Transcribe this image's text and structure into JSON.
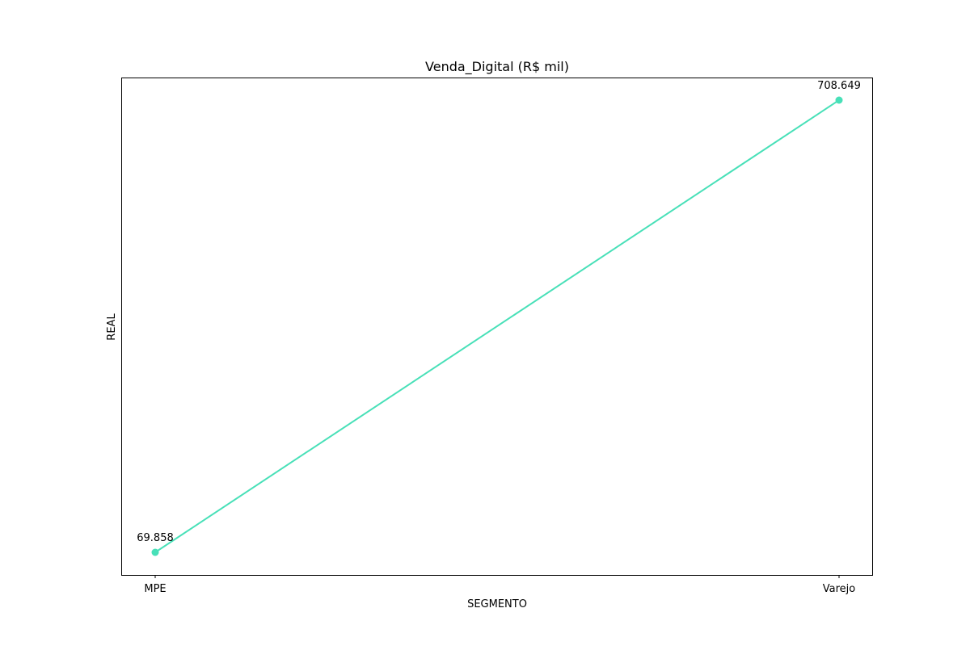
{
  "chart_data": {
    "type": "line",
    "title": "Venda_Digital (R$ mil)",
    "xlabel": "SEGMENTO",
    "ylabel": "REAL",
    "categories": [
      "MPE",
      "Varejo"
    ],
    "series": [
      {
        "values": [
          69.858,
          708.649
        ],
        "data_labels": [
          "69.858",
          "708.649"
        ],
        "color": "#48e0b8"
      }
    ],
    "ylim": [
      37.919,
      740.588
    ],
    "y_ticks_shown": false,
    "grid": false,
    "legend": "none"
  }
}
